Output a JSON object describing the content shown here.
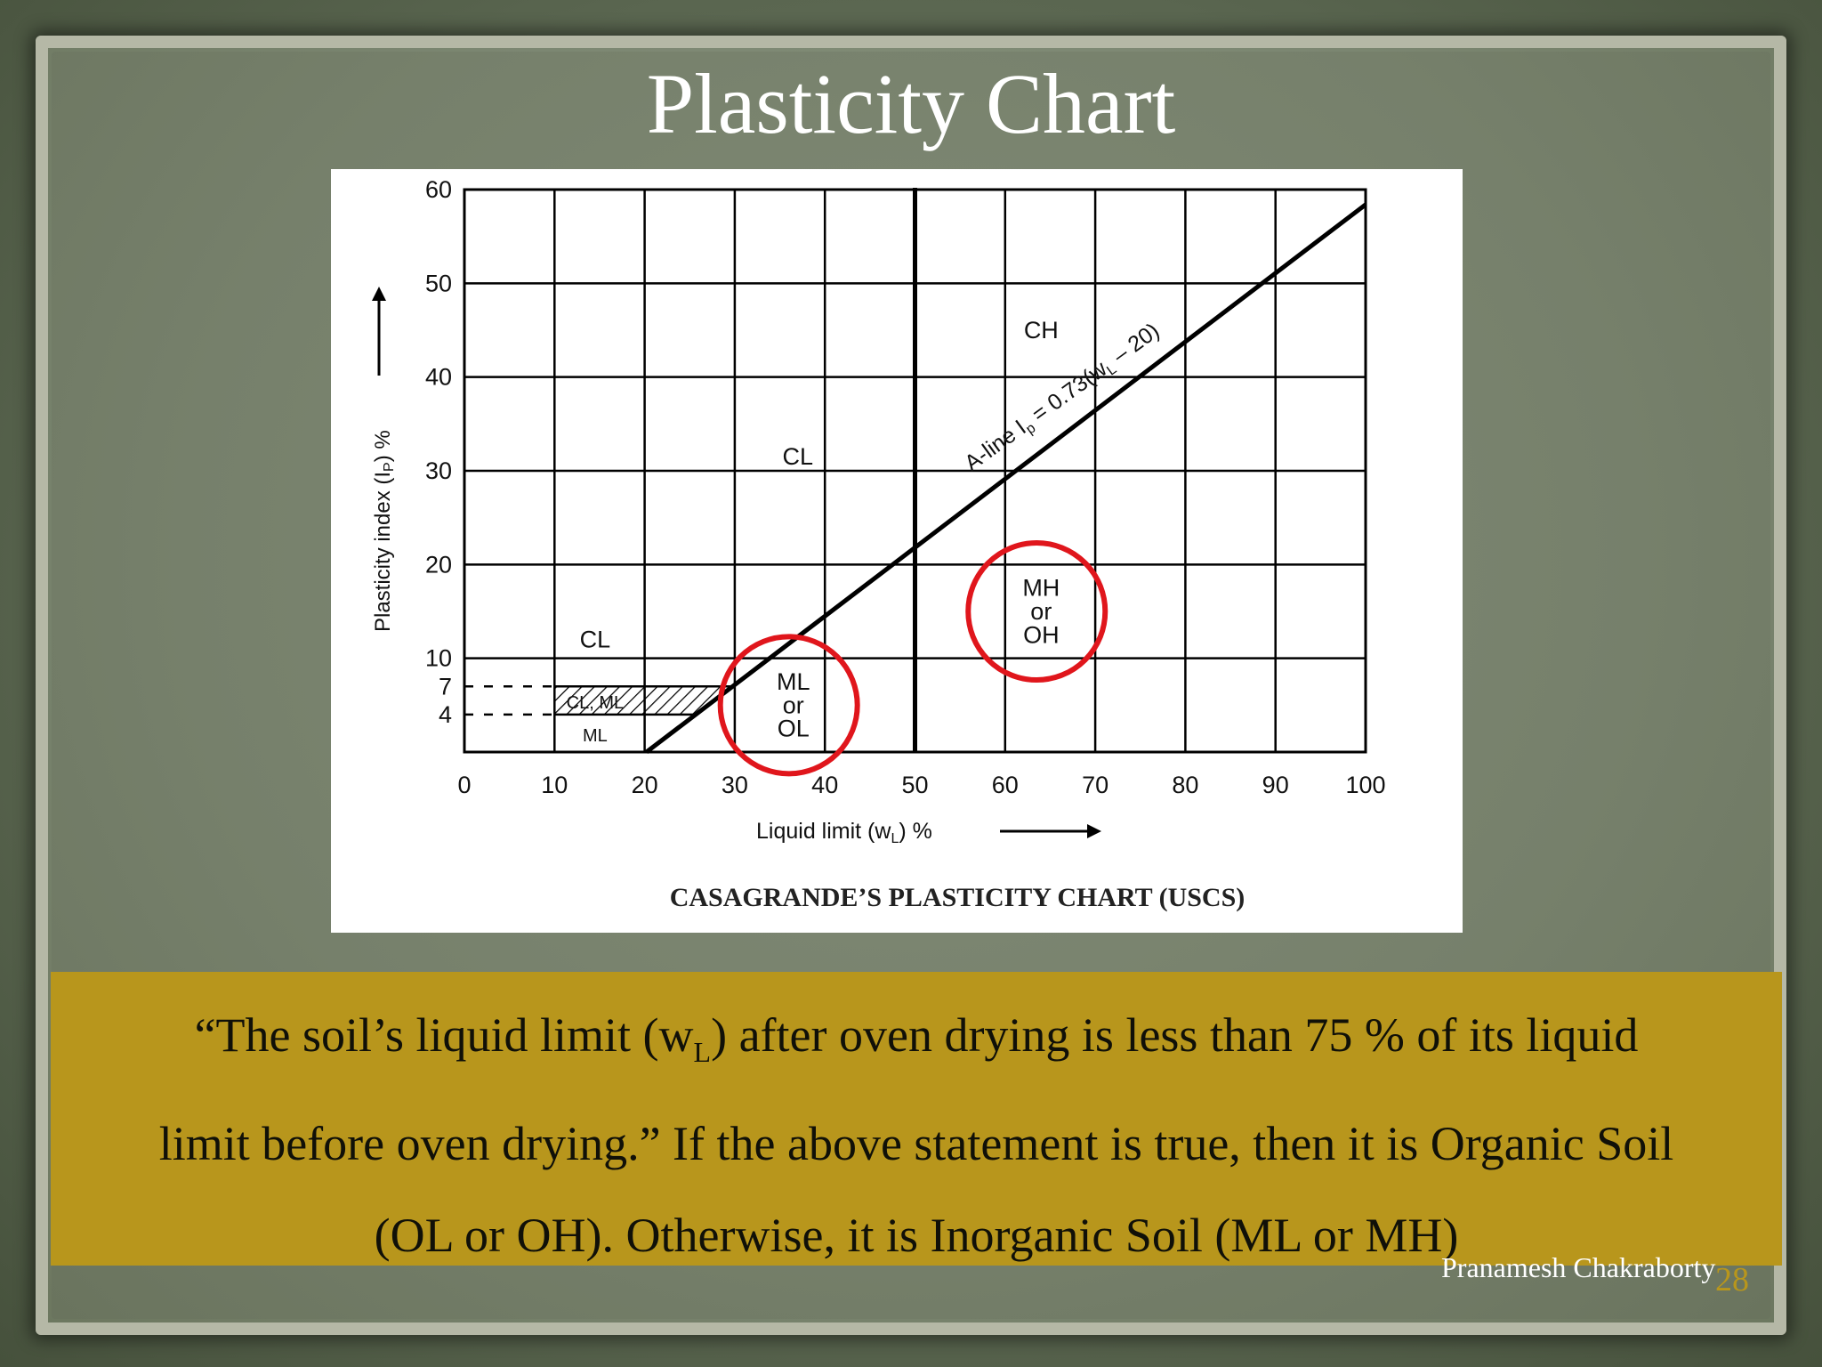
{
  "slide": {
    "title": "Plasticity Chart",
    "caption": {
      "line1_pre": "“The soil’s liquid limit (w",
      "line1_sub": "L",
      "line1_post": ") after oven drying is less than 75 % of its liquid",
      "line2": "limit before oven drying.” If the above statement is true, then it is Organic Soil",
      "line3": "(OL or OH). Otherwise, it is Inorganic Soil (ML or MH)"
    },
    "author": "Pranamesh Chakraborty",
    "page_number": "28",
    "colors": {
      "caption_bg": "#b8961c",
      "highlight_circle": "#e0161c",
      "page_number": "#b8961c"
    }
  },
  "chart_data": {
    "type": "line",
    "title": "CASAGRANDE’S PLASTICITY CHART (USCS)",
    "xlabel": "Liquid limit (w",
    "xlabel_sub": "L",
    "xlabel_post": ") %",
    "ylabel": "Plasticity index (I",
    "ylabel_sub": "P",
    "ylabel_post": ") %",
    "xlim": [
      0,
      100
    ],
    "ylim": [
      0,
      60
    ],
    "x_ticks": [
      "0",
      "10",
      "20",
      "30",
      "40",
      "50",
      "60",
      "70",
      "80",
      "90",
      "100"
    ],
    "y_ticks": [
      "60",
      "50",
      "40",
      "30",
      "20",
      "10",
      "7",
      "4"
    ],
    "grid": true,
    "a_line": {
      "label_pre": "A-line I",
      "label_sub": "p",
      "label_mid": " = 0.73(w",
      "label_sub2": "L",
      "label_post": " – 20)",
      "points": [
        [
          25.5,
          4
        ],
        [
          100,
          58.4
        ]
      ]
    },
    "vertical_line_x": 50,
    "zone_labels": [
      {
        "text": "CH",
        "x": 64,
        "y": 45
      },
      {
        "text": "CL",
        "x": 37,
        "y": 31.5
      },
      {
        "text": "CL",
        "x": 14.5,
        "y": 12
      },
      {
        "text": "CL, ML",
        "x": 14.5,
        "y": 5.5
      },
      {
        "text": "ML",
        "x": 14.5,
        "y": 2
      },
      {
        "text": "ML",
        "x": 36.5,
        "y": 7.5,
        "group": "low"
      },
      {
        "text": "or",
        "x": 36.5,
        "y": 5,
        "group": "low"
      },
      {
        "text": "OL",
        "x": 36.5,
        "y": 2.5,
        "group": "low"
      },
      {
        "text": "MH",
        "x": 64,
        "y": 17.5
      },
      {
        "text": "or",
        "x": 64,
        "y": 15
      },
      {
        "text": "OH",
        "x": 64,
        "y": 12.5
      }
    ],
    "highlight_circles": [
      {
        "x": 36,
        "y": 5
      },
      {
        "x": 63.5,
        "y": 15
      }
    ]
  }
}
